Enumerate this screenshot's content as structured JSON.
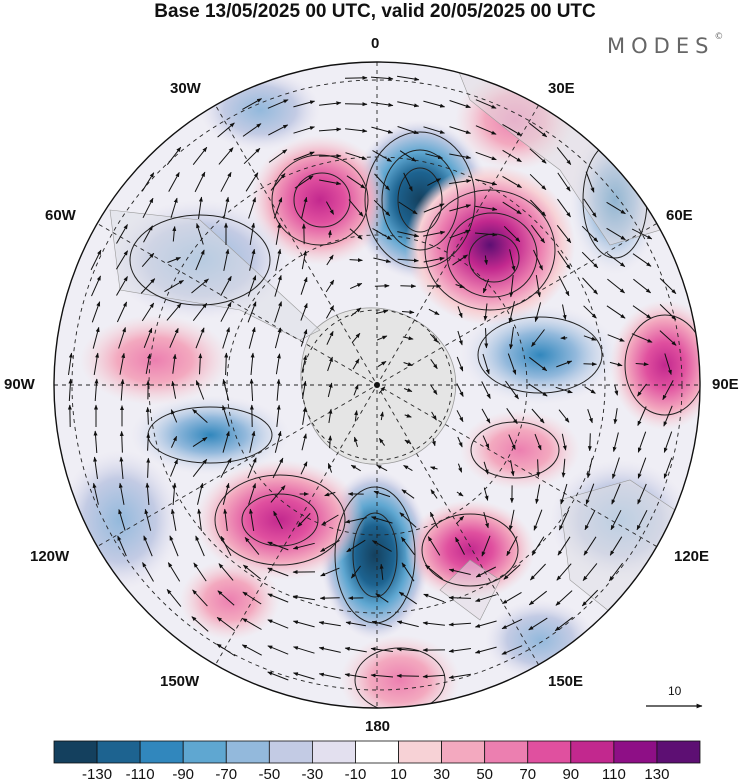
{
  "title": "Base 13/05/2025 00 UTC, valid 20/05/2025 00 UTC",
  "brand": "MODES",
  "brand_mark": "©",
  "longitude_labels": {
    "lon_0": "0",
    "lon_30e": "30E",
    "lon_60e": "60E",
    "lon_90e": "90E",
    "lon_120e": "120E",
    "lon_150e": "150E",
    "lon_180": "180",
    "lon_150w": "150W",
    "lon_120w": "120W",
    "lon_90w": "90W",
    "lon_60w": "60W",
    "lon_30w": "30W"
  },
  "reference_vector_label": "10",
  "colorbar": {
    "colors": [
      "#14405e",
      "#1d6390",
      "#3187bd",
      "#5fa7d1",
      "#93b9dc",
      "#c3cbe4",
      "#e3e0ef",
      "#ffffff",
      "#f7d2d6",
      "#f3a9bf",
      "#ec7fb0",
      "#e0509f",
      "#c2288e",
      "#8e0f86",
      "#5d0f73"
    ],
    "tick_labels": [
      "-130",
      "-110",
      "-90",
      "-70",
      "-50",
      "-30",
      "-10",
      "10",
      "30",
      "50",
      "70",
      "90",
      "110",
      "130"
    ]
  },
  "icons": {
    "vector_arrows": "wind-vector-arrow",
    "reference_arrow": "reference-arrow"
  }
}
